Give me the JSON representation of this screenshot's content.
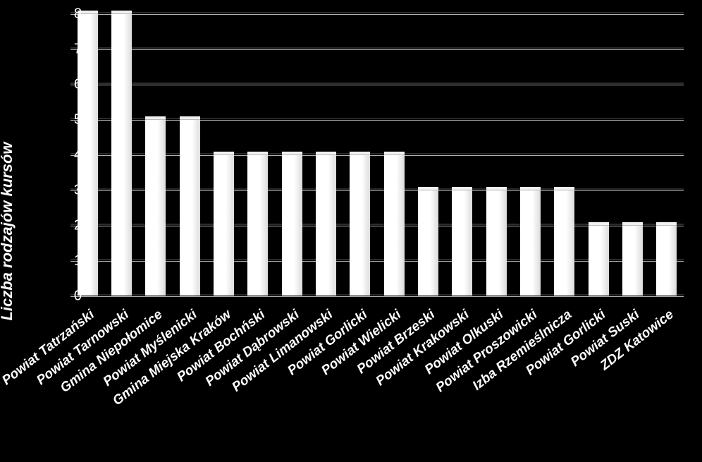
{
  "chart": {
    "type": "bar",
    "ylabel": "Liczba rodzajów kursów",
    "ylabel_fontsize": 22,
    "ylabel_fontweight": "bold",
    "ylabel_fontstyle": "italic",
    "ylabel_color": "#ffffff",
    "ylim": [
      0,
      8
    ],
    "ytick_step": 1,
    "tick_fontsize": 20,
    "tick_color": "#ffffff",
    "grid_color": "#b0b0b0",
    "background_color": "#000000",
    "bar_color": "#ffffff",
    "bar_width": 0.6,
    "xlabel_fontsize": 19,
    "xlabel_fontweight": "bold",
    "xlabel_fontstyle": "italic",
    "xlabel_rotation": -38,
    "categories": [
      "Powiat Tatrzański",
      "Powiat Tarnowski",
      "Gmina Niepołomice",
      "Powiat Myślenicki",
      "Gmina Miejska Kraków",
      "Powiat Bochński",
      "Powiat Dąbrowski",
      "Powiat Limanowski",
      "Powiat Gorlicki",
      "Powiat Wielicki",
      "Powiat Brzeski",
      "Powiat Krakowski",
      "Powiat Olkuski",
      "Powiat Proszowicki",
      "Izba Rzemieślnicza",
      "Powiat Gorlicki",
      "Powiat Suski",
      "ZDZ Katowice"
    ],
    "values": [
      8,
      8,
      5,
      5,
      4,
      4,
      4,
      4,
      4,
      4,
      3,
      3,
      3,
      3,
      3,
      2,
      2,
      2
    ]
  }
}
